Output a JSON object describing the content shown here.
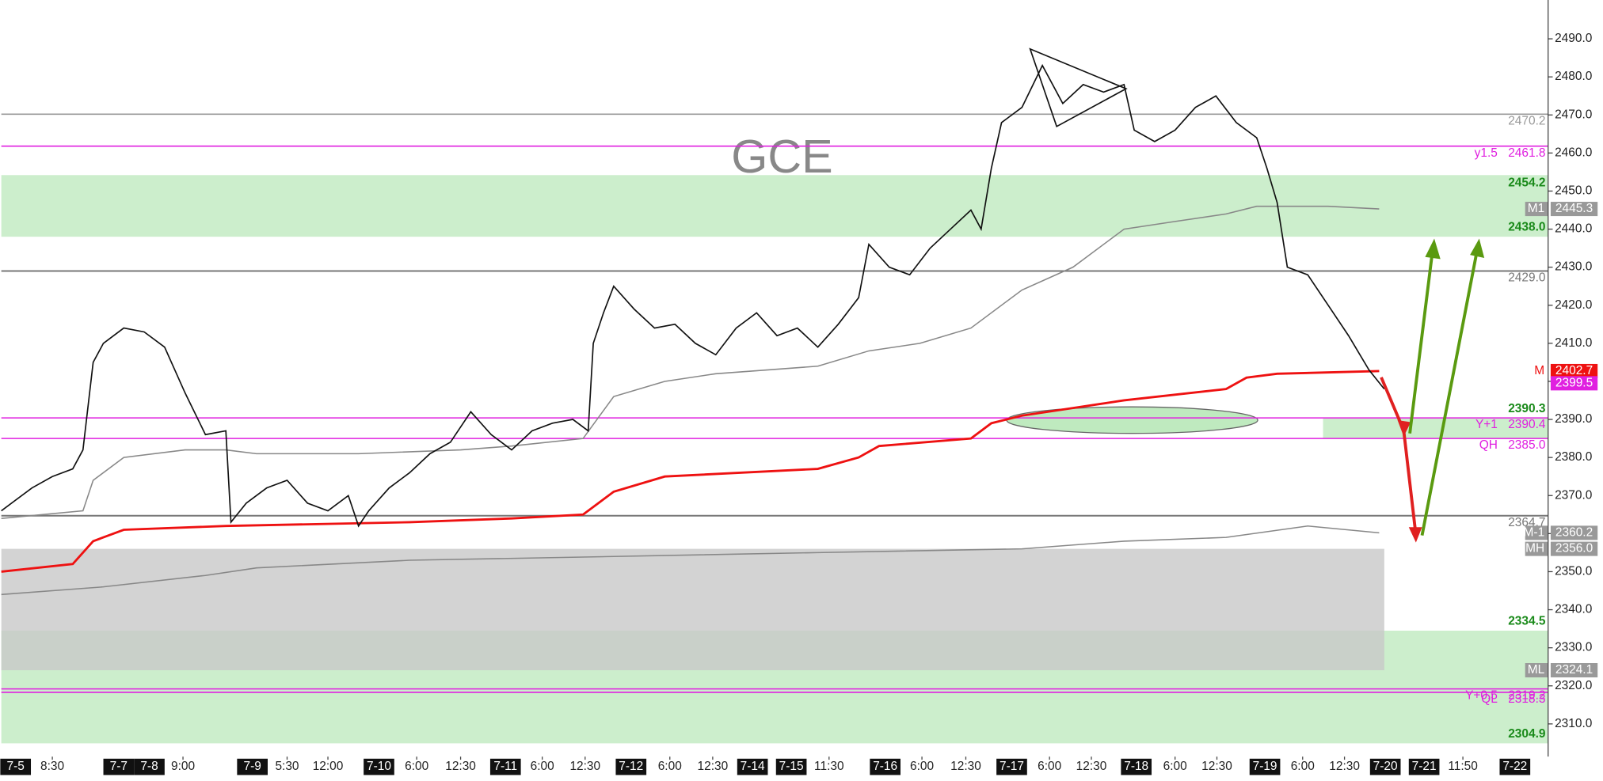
{
  "chart_data": {
    "type": "line",
    "title": "GCE",
    "xlim": [
      0,
      151.5
    ],
    "ylim": [
      2301.4,
      2500.2
    ],
    "yticks": [
      {
        "value": 2310,
        "label": "2310.0"
      },
      {
        "value": 2320,
        "label": "2320.0"
      },
      {
        "value": 2330,
        "label": "2330.0"
      },
      {
        "value": 2340,
        "label": "2340.0"
      },
      {
        "value": 2350,
        "label": "2350.0"
      },
      {
        "value": 2360,
        "label": "2360.0"
      },
      {
        "value": 2370,
        "label": "2370.0"
      },
      {
        "value": 2380,
        "label": "2380.0"
      },
      {
        "value": 2390,
        "label": "2390.0"
      },
      {
        "value": 2400,
        "label": "2400.0"
      },
      {
        "value": 2410,
        "label": "2410.0"
      },
      {
        "value": 2420,
        "label": "2420.0"
      },
      {
        "value": 2430,
        "label": "2430.0"
      },
      {
        "value": 2440,
        "label": "2440.0"
      },
      {
        "value": 2450,
        "label": "2450.0"
      },
      {
        "value": 2460,
        "label": "2460.0"
      },
      {
        "value": 2470,
        "label": "2470.0"
      },
      {
        "value": 2480,
        "label": "2480.0"
      },
      {
        "value": 2490,
        "label": "2490.0"
      }
    ],
    "xticks": [
      {
        "value": 1.4,
        "label": "7-5"
      },
      {
        "value": 5,
        "label": "8:30"
      },
      {
        "value": 11.5,
        "label": "7-7"
      },
      {
        "value": 14.5,
        "label": "7-8"
      },
      {
        "value": 17.8,
        "label": "9:00"
      },
      {
        "value": 24.6,
        "label": "7-9"
      },
      {
        "value": 28,
        "label": "5:30"
      },
      {
        "value": 32,
        "label": "12:00"
      },
      {
        "value": 37,
        "label": "7-10"
      },
      {
        "value": 40.7,
        "label": "6:00"
      },
      {
        "value": 45,
        "label": "12:30"
      },
      {
        "value": 49.4,
        "label": "7-11"
      },
      {
        "value": 53,
        "label": "6:00"
      },
      {
        "value": 57.2,
        "label": "12:30"
      },
      {
        "value": 61.7,
        "label": "7-12"
      },
      {
        "value": 65.5,
        "label": "6:00"
      },
      {
        "value": 69.7,
        "label": "12:30"
      },
      {
        "value": 73.6,
        "label": "7-14"
      },
      {
        "value": 77.4,
        "label": "7-15"
      },
      {
        "value": 81.1,
        "label": "11:30"
      },
      {
        "value": 86.6,
        "label": "7-16"
      },
      {
        "value": 90.2,
        "label": "6:00"
      },
      {
        "value": 94.5,
        "label": "12:30"
      },
      {
        "value": 99,
        "label": "7-17"
      },
      {
        "value": 102.7,
        "label": "6:00"
      },
      {
        "value": 106.8,
        "label": "12:30"
      },
      {
        "value": 111.2,
        "label": "7-18"
      },
      {
        "value": 115,
        "label": "6:00"
      },
      {
        "value": 119.1,
        "label": "12:30"
      },
      {
        "value": 123.8,
        "label": "7-19"
      },
      {
        "value": 127.5,
        "label": "6:00"
      },
      {
        "value": 131.6,
        "label": "12:30"
      },
      {
        "value": 135.6,
        "label": "7-20"
      },
      {
        "value": 139.4,
        "label": "7-21"
      },
      {
        "value": 143.2,
        "label": "11:50"
      },
      {
        "value": 148.3,
        "label": "7-22"
      }
    ],
    "price": {
      "color": "#111111",
      "x": [
        0,
        3,
        5,
        7,
        8,
        9,
        10,
        12,
        14,
        16,
        18,
        20,
        22,
        22.5,
        24,
        26,
        28,
        30,
        32,
        34,
        35,
        36,
        38,
        40,
        42,
        44,
        46,
        48,
        50,
        52,
        54,
        56,
        57.5,
        58,
        59,
        60,
        62,
        64,
        66,
        68,
        70,
        72,
        74,
        76,
        78,
        80,
        82,
        84,
        85,
        87,
        89,
        91,
        93,
        95,
        96,
        97,
        98,
        100,
        102,
        104,
        106,
        108,
        110,
        111,
        113,
        115,
        117,
        119,
        121,
        123,
        124,
        125,
        126,
        128,
        130,
        132,
        134,
        135.5
      ],
      "values": [
        2366,
        2372,
        2375,
        2377,
        2382,
        2405,
        2410,
        2414,
        2413,
        2409,
        2397,
        2386,
        2387,
        2363,
        2368,
        2372,
        2374,
        2368,
        2366,
        2370,
        2362,
        2366,
        2372,
        2376,
        2381,
        2384,
        2392,
        2386,
        2382,
        2387,
        2389,
        2390,
        2387,
        2410,
        2418,
        2425,
        2419,
        2414,
        2415,
        2410,
        2407,
        2414,
        2418,
        2412,
        2414,
        2409,
        2415,
        2422,
        2436,
        2430,
        2428,
        2435,
        2440,
        2445,
        2440,
        2456,
        2468,
        2472,
        2483,
        2473,
        2478,
        2476,
        2478,
        2466,
        2463,
        2466,
        2472,
        2475,
        2468,
        2464,
        2456,
        2447,
        2430,
        2428,
        2420,
        2412,
        2403,
        2398
      ]
    },
    "curves": [
      {
        "color": "#888888",
        "x": [
          0,
          8,
          9,
          12,
          18,
          22,
          25,
          35,
          45,
          50,
          57,
          60,
          65,
          70,
          75,
          80,
          85,
          90,
          95,
          100,
          105,
          110,
          115,
          120,
          123,
          125,
          130,
          135
        ],
        "values": [
          2364,
          2366,
          2374,
          2380,
          2382,
          2382,
          2381,
          2381,
          2382,
          2383,
          2385,
          2396,
          2400,
          2402,
          2403,
          2404,
          2408,
          2410,
          2414,
          2424,
          2430,
          2440,
          2442,
          2444,
          2446,
          2446,
          2446,
          2445.3
        ]
      },
      {
        "color": "#888888",
        "x": [
          0,
          10,
          20,
          25,
          40,
          60,
          80,
          100,
          110,
          120,
          128,
          135
        ],
        "values": [
          2344,
          2346,
          2349,
          2351,
          2353,
          2354,
          2355,
          2356,
          2358,
          2359,
          2362,
          2360.2
        ]
      },
      {
        "color": "#ee1111",
        "x": [
          0,
          7,
          9,
          12,
          22,
          40,
          50,
          57,
          60,
          65,
          80,
          84,
          86,
          95,
          97,
          100,
          105,
          110,
          120,
          122,
          125,
          135
        ],
        "values": [
          2350,
          2352,
          2358,
          2361,
          2362,
          2363,
          2364,
          2365,
          2371,
          2375,
          2377,
          2380,
          2383,
          2385,
          2389,
          2391,
          2393,
          2395,
          2398,
          2401,
          2402,
          2402.7
        ]
      }
    ],
    "zones": [
      {
        "lo": 2438,
        "hi": 2454.2,
        "color": "#bfeabf"
      },
      {
        "lo": 2304.9,
        "hi": 2334.5,
        "color": "#bfeabf"
      },
      {
        "lo": 2324.1,
        "hi": 2356,
        "color": "#c8c8c8",
        "x_end": 135.5
      },
      {
        "lo": 2385,
        "hi": 2390.3,
        "color": "#bfeabf",
        "x_start": 129.5
      }
    ],
    "levels": [
      {
        "value": 2470.2,
        "value_label": "2470.2",
        "color": "#999999",
        "line": true
      },
      {
        "name": "y1.5",
        "value": 2461.8,
        "value_label": "2461.8",
        "color": "#e020e0",
        "line": true
      },
      {
        "value": 2454.2,
        "value_label": "2454.2",
        "color": "#1a8a1a"
      },
      {
        "name": "M1",
        "value": 2445.3,
        "value_label": "2445.3",
        "color": "#999999",
        "boxed": true
      },
      {
        "value": 2438,
        "value_label": "2438.0",
        "color": "#1a8a1a"
      },
      {
        "value": 2429,
        "value_label": "2429.0",
        "color": "#777777",
        "line": true
      },
      {
        "name": "M",
        "value": 2402.7,
        "value_label": "2402.7",
        "color": "#ee1111",
        "boxed": true
      },
      {
        "value": 2399.5,
        "value_label": "2399.5",
        "color": "#e020e0",
        "boxed": true
      },
      {
        "value": 2390.3,
        "value_label": "2390.3",
        "color": "#1a8a1a"
      },
      {
        "name": "Y+1",
        "value": 2390.4,
        "value_label": "2390.4",
        "color": "#e020e0",
        "line": true
      },
      {
        "name": "QH",
        "value": 2385,
        "value_label": "2385.0",
        "color": "#e020e0",
        "line": true
      },
      {
        "value": 2364.7,
        "value_label": "2364.7",
        "color": "#777777",
        "line": true
      },
      {
        "name": "M-1",
        "value": 2360.2,
        "value_label": "2360.2",
        "color": "#999999",
        "boxed": true
      },
      {
        "name": "MH",
        "value": 2356,
        "value_label": "2356.0",
        "color": "#999999",
        "boxed": true
      },
      {
        "value": 2334.5,
        "value_label": "2334.5",
        "color": "#1a8a1a"
      },
      {
        "name": "ML",
        "value": 2324.1,
        "value_label": "2324.1",
        "color": "#999999",
        "boxed": true
      },
      {
        "name": "Y+0.5",
        "value": 2319.2,
        "value_label": "2319.2",
        "color": "#e020e0",
        "line": true
      },
      {
        "name": "QL",
        "value": 2318.3,
        "value_label": "2318.3",
        "color": "#e020e0",
        "line": true
      },
      {
        "value": 2304.9,
        "value_label": "2304.9",
        "color": "#1a8a1a"
      }
    ]
  }
}
